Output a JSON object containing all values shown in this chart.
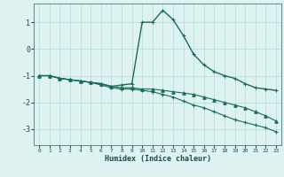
{
  "xlabel": "Humidex (Indice chaleur)",
  "ylabel": "",
  "background_color": "#dff2f2",
  "grid_color": "#b8dede",
  "line_color": "#1a6b5a",
  "xlim": [
    -0.5,
    23.5
  ],
  "ylim": [
    -3.6,
    1.7
  ],
  "yticks": [
    -3,
    -2,
    -1,
    0,
    1
  ],
  "xticks": [
    0,
    1,
    2,
    3,
    4,
    5,
    6,
    7,
    8,
    9,
    10,
    11,
    12,
    13,
    14,
    15,
    16,
    17,
    18,
    19,
    20,
    21,
    22,
    23
  ],
  "series": [
    {
      "x": [
        0,
        1,
        2,
        3,
        4,
        5,
        6,
        7,
        8,
        9,
        10,
        11,
        12,
        13,
        14,
        15,
        16,
        17,
        18,
        19,
        20,
        21,
        22,
        23
      ],
      "y": [
        -1.0,
        -1.0,
        -1.1,
        -1.15,
        -1.2,
        -1.25,
        -1.3,
        -1.4,
        -1.35,
        -1.3,
        1.0,
        1.0,
        1.45,
        1.1,
        0.5,
        -0.2,
        -0.6,
        -0.85,
        -1.0,
        -1.1,
        -1.3,
        -1.45,
        -1.5,
        -1.55
      ],
      "marker": "+",
      "markersize": 3.5,
      "linewidth": 1.0
    },
    {
      "x": [
        0,
        1,
        2,
        3,
        4,
        5,
        6,
        7,
        8,
        9,
        10,
        11,
        12,
        13,
        14,
        15,
        16,
        17,
        18,
        19,
        20,
        21,
        22,
        23
      ],
      "y": [
        -1.0,
        -1.0,
        -1.1,
        -1.15,
        -1.2,
        -1.25,
        -1.3,
        -1.4,
        -1.45,
        -1.45,
        -1.5,
        -1.5,
        -1.55,
        -1.6,
        -1.65,
        -1.7,
        -1.8,
        -1.9,
        -2.0,
        -2.1,
        -2.2,
        -2.35,
        -2.5,
        -2.7
      ],
      "marker": "^",
      "markersize": 2.5,
      "linewidth": 0.8
    },
    {
      "x": [
        0,
        1,
        2,
        3,
        4,
        5,
        6,
        7,
        8,
        9,
        10,
        11,
        12,
        13,
        14,
        15,
        16,
        17,
        18,
        19,
        20,
        21,
        22,
        23
      ],
      "y": [
        -1.0,
        -1.0,
        -1.1,
        -1.15,
        -1.2,
        -1.25,
        -1.35,
        -1.45,
        -1.5,
        -1.5,
        -1.55,
        -1.6,
        -1.7,
        -1.8,
        -1.95,
        -2.1,
        -2.2,
        -2.35,
        -2.5,
        -2.65,
        -2.75,
        -2.85,
        -2.95,
        -3.1
      ],
      "marker": "+",
      "markersize": 2.5,
      "linewidth": 0.8
    }
  ]
}
